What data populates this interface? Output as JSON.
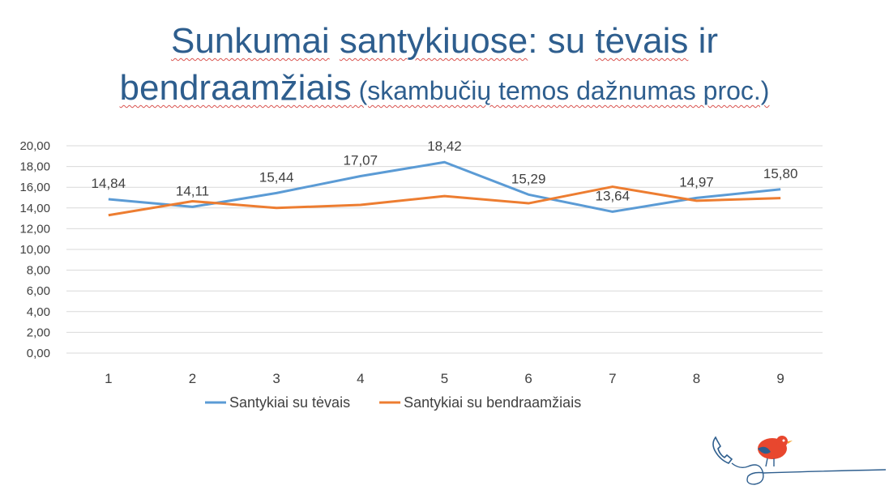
{
  "title": {
    "line1": [
      "Sunkumai",
      " ",
      "santykiuose",
      ": su ",
      "tėvais",
      " ir"
    ],
    "line2_main": "bendraamžiais",
    "line2_sub": " (skambučių temos dažnumas proc.)"
  },
  "chart_data": {
    "type": "line",
    "title": "Sunkumai santykiuose: su tėvais ir bendraamžiais (skambučių temos dažnumas proc.)",
    "x": [
      "1",
      "2",
      "3",
      "4",
      "5",
      "6",
      "7",
      "8",
      "9"
    ],
    "ylim": [
      0,
      20
    ],
    "yticks": [
      "0,00",
      "2,00",
      "4,00",
      "6,00",
      "8,00",
      "10,00",
      "12,00",
      "14,00",
      "16,00",
      "18,00",
      "20,00"
    ],
    "grid": true,
    "legend_position": "bottom",
    "series": [
      {
        "name": "Santykiai su tėvais",
        "color": "#5B9BD5",
        "values": [
          14.84,
          14.11,
          15.44,
          17.07,
          18.42,
          15.29,
          13.64,
          14.97,
          15.8
        ],
        "labels": [
          "14,84",
          "14,11",
          "15,44",
          "17,07",
          "18,42",
          "15,29",
          "13,64",
          "14,97",
          "15,80"
        ]
      },
      {
        "name": "Santykiai su bendraamžiais",
        "color": "#ED7D31",
        "values": [
          13.3,
          14.65,
          14.0,
          14.3,
          15.15,
          14.45,
          16.05,
          14.7,
          14.95
        ]
      }
    ]
  },
  "logo": {
    "icon": "phone-bird-logo-icon"
  }
}
